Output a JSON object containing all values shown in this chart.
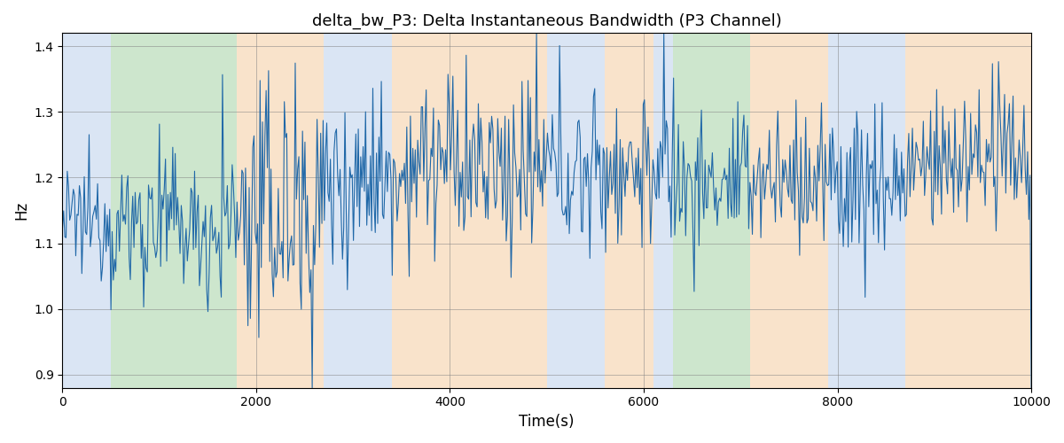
{
  "title": "delta_bw_P3: Delta Instantaneous Bandwidth (P3 Channel)",
  "xlabel": "Time(s)",
  "ylabel": "Hz",
  "xlim": [
    0,
    10000
  ],
  "ylim": [
    0.88,
    1.42
  ],
  "yticks": [
    0.9,
    1.0,
    1.1,
    1.2,
    1.3,
    1.4
  ],
  "xticks": [
    0,
    2000,
    4000,
    6000,
    8000,
    10000
  ],
  "line_color": "#2068a8",
  "line_width": 0.8,
  "background_color": "#ffffff",
  "bands": [
    {
      "xmin": 0,
      "xmax": 500,
      "color": "#aec6e8",
      "alpha": 0.45
    },
    {
      "xmin": 500,
      "xmax": 1800,
      "color": "#90c990",
      "alpha": 0.45
    },
    {
      "xmin": 1800,
      "xmax": 2700,
      "color": "#f5c999",
      "alpha": 0.5
    },
    {
      "xmin": 2700,
      "xmax": 3400,
      "color": "#aec6e8",
      "alpha": 0.45
    },
    {
      "xmin": 3400,
      "xmax": 5000,
      "color": "#f5c999",
      "alpha": 0.5
    },
    {
      "xmin": 5000,
      "xmax": 5600,
      "color": "#aec6e8",
      "alpha": 0.45
    },
    {
      "xmin": 5600,
      "xmax": 6100,
      "color": "#f5c999",
      "alpha": 0.5
    },
    {
      "xmin": 6100,
      "xmax": 6300,
      "color": "#aec6e8",
      "alpha": 0.45
    },
    {
      "xmin": 6300,
      "xmax": 7100,
      "color": "#90c990",
      "alpha": 0.45
    },
    {
      "xmin": 7100,
      "xmax": 7900,
      "color": "#f5c999",
      "alpha": 0.5
    },
    {
      "xmin": 7900,
      "xmax": 8700,
      "color": "#aec6e8",
      "alpha": 0.45
    },
    {
      "xmin": 8700,
      "xmax": 10000,
      "color": "#f5c999",
      "alpha": 0.5
    }
  ],
  "seed": 12345,
  "n_points": 800,
  "segments": [
    {
      "xmin": 0,
      "xmax": 500,
      "mean": 1.13,
      "std": 0.04
    },
    {
      "xmin": 500,
      "xmax": 1800,
      "mean": 1.12,
      "std": 0.055
    },
    {
      "xmin": 1800,
      "xmax": 2700,
      "mean": 1.15,
      "std": 0.1
    },
    {
      "xmin": 2700,
      "xmax": 3400,
      "mean": 1.2,
      "std": 0.07
    },
    {
      "xmin": 3400,
      "xmax": 5000,
      "mean": 1.21,
      "std": 0.065
    },
    {
      "xmin": 5000,
      "xmax": 5600,
      "mean": 1.22,
      "std": 0.06
    },
    {
      "xmin": 5600,
      "xmax": 6100,
      "mean": 1.22,
      "std": 0.065
    },
    {
      "xmin": 6100,
      "xmax": 6300,
      "mean": 1.2,
      "std": 0.055
    },
    {
      "xmin": 6300,
      "xmax": 7100,
      "mean": 1.18,
      "std": 0.055
    },
    {
      "xmin": 7100,
      "xmax": 7900,
      "mean": 1.2,
      "std": 0.065
    },
    {
      "xmin": 7900,
      "xmax": 8700,
      "mean": 1.2,
      "std": 0.06
    },
    {
      "xmin": 8700,
      "xmax": 10000,
      "mean": 1.22,
      "std": 0.055
    }
  ]
}
